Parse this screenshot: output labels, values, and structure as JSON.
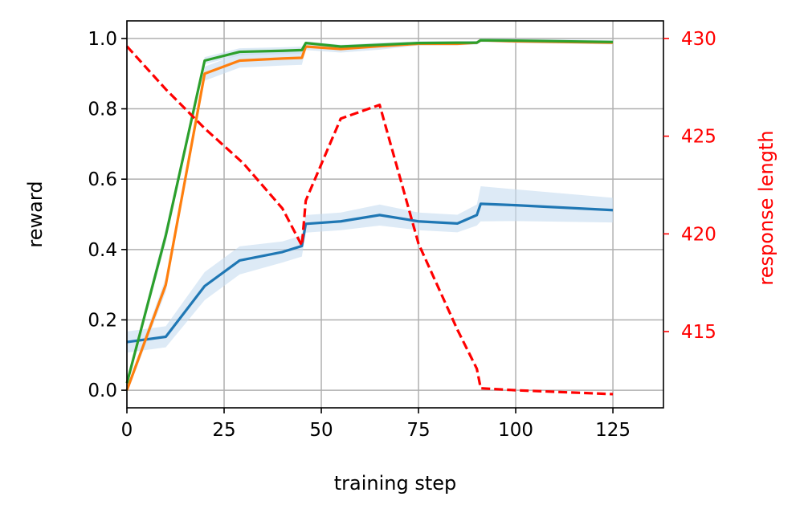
{
  "chart_data": {
    "type": "line",
    "xlabel": "training step",
    "ylabel": "reward",
    "y2label": "response length",
    "xlim": [
      0,
      138
    ],
    "ylim": [
      -0.05,
      1.05
    ],
    "y2lim": [
      411.1,
      430.9
    ],
    "xticks": [
      0,
      25,
      50,
      75,
      100,
      125
    ],
    "yticks": [
      0.0,
      0.2,
      0.4,
      0.6,
      0.8,
      1.0
    ],
    "y2ticks": [
      415,
      420,
      425,
      430
    ],
    "grid": true,
    "colors": {
      "blue": "#1f77b4",
      "orange": "#ff7f0e",
      "green": "#2ca02c",
      "band": "#c6dcf0",
      "red": "#ff0000"
    },
    "series": [
      {
        "axis": "left",
        "color": "#1f77b4",
        "x": [
          0,
          10,
          20,
          29,
          40,
          45,
          46,
          55,
          65,
          75,
          85,
          90,
          91,
          100,
          125
        ],
        "y": [
          0.137,
          0.152,
          0.296,
          0.369,
          0.393,
          0.41,
          0.473,
          0.48,
          0.498,
          0.48,
          0.474,
          0.498,
          0.53,
          0.526,
          0.512
        ],
        "band": [
          0.03,
          0.03,
          0.04,
          0.04,
          0.03,
          0.03,
          0.025,
          0.025,
          0.03,
          0.025,
          0.025,
          0.03,
          0.05,
          0.045,
          0.035
        ]
      },
      {
        "axis": "left",
        "color": "#ff7f0e",
        "x": [
          0,
          10,
          20,
          29,
          40,
          45,
          46,
          55,
          65,
          75,
          85,
          90,
          91,
          100,
          125
        ],
        "y": [
          0.0,
          0.3,
          0.9,
          0.937,
          0.943,
          0.945,
          0.977,
          0.97,
          0.978,
          0.985,
          0.985,
          0.988,
          0.995,
          0.992,
          0.988
        ],
        "band": [
          0.01,
          0.02,
          0.02,
          0.02,
          0.02,
          0.02,
          0.01,
          0.01,
          0.01,
          0.005,
          0.005,
          0.005,
          0.005,
          0.005,
          0.005
        ]
      },
      {
        "axis": "left",
        "color": "#2ca02c",
        "x": [
          0,
          10,
          20,
          29,
          40,
          45,
          46,
          55,
          65,
          75,
          85,
          90,
          91,
          100,
          125
        ],
        "y": [
          0.02,
          0.44,
          0.937,
          0.962,
          0.965,
          0.967,
          0.987,
          0.977,
          0.982,
          0.987,
          0.988,
          0.988,
          0.995,
          0.994,
          0.99
        ],
        "band": [
          0.01,
          0.02,
          0.01,
          0.01,
          0.01,
          0.01,
          0.005,
          0.005,
          0.005,
          0.005,
          0.005,
          0.005,
          0.005,
          0.005,
          0.005
        ]
      },
      {
        "axis": "right",
        "color": "#ff0000",
        "dashed": true,
        "x": [
          0,
          10,
          20,
          30,
          40,
          45,
          46,
          55,
          65,
          75,
          85,
          90,
          91,
          100,
          125
        ],
        "y": [
          429.6,
          427.4,
          425.4,
          423.6,
          421.3,
          419.4,
          421.7,
          425.9,
          426.6,
          419.5,
          415.1,
          413.1,
          412.1,
          412.0,
          411.8
        ]
      }
    ]
  }
}
